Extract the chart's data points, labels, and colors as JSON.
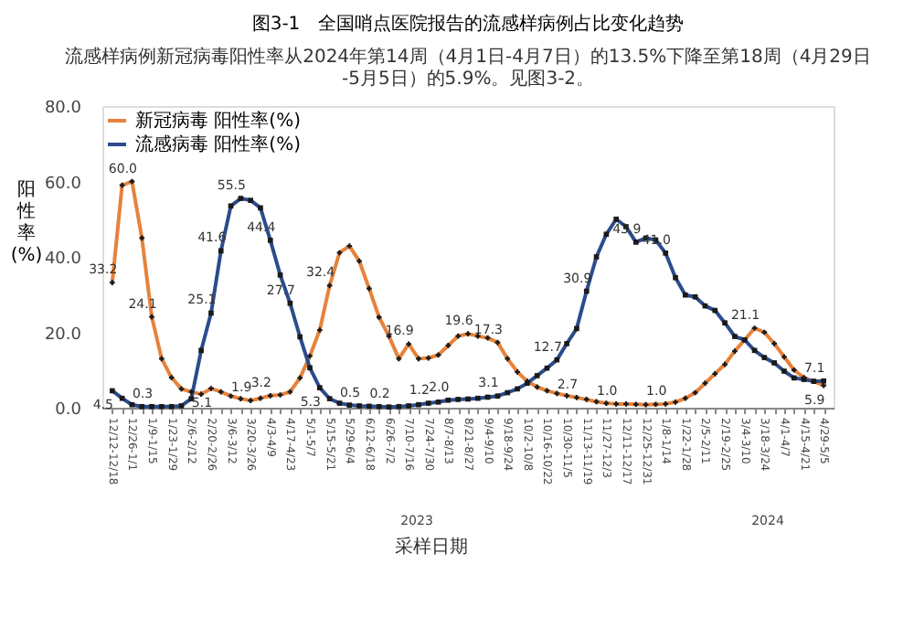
{
  "chart_data": {
    "type": "line",
    "title": "图3-1　全国哨点医院报告的流感样病例占比变化趋势",
    "subtitle": "流感样病例新冠病毒阳性率从2024年第14周（4月1日-4月7日）的13.5%下降至第18周（4月29日-5月5日）的5.9%。见图3-2。",
    "xlabel": "采样日期",
    "ylabel": "阳性率(%)",
    "categories": [
      "12/12-12/18",
      null,
      "12/26-1/1",
      null,
      "1/9-1/15",
      null,
      "1/23-1/29",
      null,
      "2/6-2/12",
      null,
      "2/20-2/26",
      null,
      "3/6-3/12",
      null,
      "3/20-3/26",
      null,
      "4/3-4/9",
      null,
      "4/17-4/23",
      null,
      "5/1-5/7",
      null,
      "5/15-5/21",
      null,
      "5/29-6/4",
      null,
      "6/12-6/18",
      null,
      "6/26-7/2",
      null,
      "7/10-7/16",
      null,
      "7/24-7/30",
      null,
      "8/7-8/13",
      null,
      "8/21-8/27",
      null,
      "9/4-9/10",
      null,
      "9/18-9/24",
      null,
      "10/2-10/8",
      null,
      "10/16-10/22",
      null,
      "10/30-11/5",
      null,
      "11/13-11/19",
      null,
      "11/27-12/3",
      null,
      "12/11-12/17",
      null,
      "12/25-12/31",
      null,
      "1/8-1/14",
      null,
      "1/22-1/28",
      null,
      "2/5-2/11",
      null,
      "2/19-2/25",
      null,
      "3/4-3/10",
      null,
      "3/18-3/24",
      null,
      "4/1-4/7",
      null,
      "4/15-4/21",
      null,
      "4/29-5/5"
    ],
    "series": [
      {
        "name": "新冠病毒 阳性率(%)",
        "color": "#e8823a",
        "marker": "cross",
        "values": [
          33.2,
          59,
          60.0,
          45,
          24.1,
          13,
          8,
          5,
          4.2,
          3.6,
          5.1,
          4.2,
          3.1,
          2.4,
          1.9,
          2.5,
          3.2,
          3.4,
          4.2,
          7.9,
          13.7,
          20.6,
          32.4,
          41.1,
          42.9,
          38.9,
          31.6,
          24,
          19,
          13,
          16.9,
          13,
          13.2,
          14,
          16.5,
          19,
          19.6,
          19,
          18.5,
          17.3,
          13,
          9.5,
          7,
          5.5,
          4.5,
          3.8,
          3.2,
          2.7,
          2.2,
          1.6,
          1.2,
          1.0,
          1.0,
          0.9,
          0.8,
          0.9,
          1.0,
          1.5,
          2.5,
          4,
          6.5,
          9,
          11.5,
          15,
          18,
          21.1,
          20,
          17,
          13.5,
          10,
          8,
          7,
          5.9
        ],
        "value_labels": [
          "33.2",
          null,
          "60.0",
          null,
          "24.1",
          null,
          null,
          null,
          null,
          null,
          "5.1",
          null,
          null,
          null,
          "1.9",
          null,
          "3.2",
          null,
          null,
          null,
          null,
          null,
          "32.4",
          null,
          null,
          null,
          null,
          null,
          null,
          null,
          "16.9",
          null,
          null,
          null,
          null,
          null,
          "19.6",
          null,
          null,
          "17.3",
          null,
          null,
          null,
          null,
          null,
          null,
          null,
          "2.7",
          null,
          null,
          null,
          "1.0",
          null,
          null,
          null,
          null,
          "1.0",
          null,
          null,
          null,
          null,
          null,
          null,
          null,
          null,
          "21.1",
          null,
          null,
          null,
          null,
          null,
          null,
          "5.9"
        ]
      },
      {
        "name": "流感病毒 阳性率(%)",
        "color": "#2b4c8c",
        "marker": "square",
        "values": [
          4.5,
          2.5,
          0.8,
          0.3,
          0.3,
          0.3,
          0.3,
          0.5,
          2.4,
          15.2,
          25.1,
          41.6,
          53.5,
          55.5,
          55,
          53,
          44.4,
          35.2,
          27.7,
          18.8,
          10.6,
          5.3,
          2.4,
          1.2,
          0.7,
          0.5,
          0.4,
          0.3,
          0.2,
          0.3,
          0.5,
          0.8,
          1.2,
          1.5,
          2.0,
          2.2,
          2.3,
          2.5,
          2.8,
          3.1,
          4,
          5,
          6.5,
          8.5,
          10.5,
          12.7,
          17,
          21,
          30.9,
          40,
          46,
          50,
          48,
          43.9,
          45,
          44.5,
          41.0,
          34.5,
          29.9,
          29.4,
          27,
          25.8,
          22.5,
          18.9,
          18,
          15.2,
          13.3,
          11.9,
          9.7,
          7.9,
          7.5,
          7.0,
          7.1
        ],
        "value_labels": [
          "4.5",
          null,
          null,
          null,
          "0.3",
          null,
          null,
          null,
          null,
          null,
          "25.1",
          "41.6",
          null,
          "55.5",
          null,
          null,
          "44.4",
          null,
          "27.7",
          null,
          null,
          "5.3",
          null,
          null,
          null,
          "0.5",
          null,
          null,
          "0.2",
          null,
          null,
          null,
          "1.2",
          null,
          "2.0",
          null,
          null,
          null,
          null,
          "3.1",
          null,
          null,
          null,
          null,
          null,
          "12.7",
          null,
          null,
          "30.9",
          null,
          null,
          null,
          null,
          "43.9",
          null,
          null,
          "41.0",
          null,
          null,
          null,
          null,
          null,
          null,
          null,
          null,
          null,
          null,
          null,
          null,
          null,
          null,
          null,
          "7.1"
        ]
      }
    ],
    "annotations": [
      "2023",
      "2024"
    ],
    "ylim": [
      0,
      80
    ],
    "yticks": [
      {
        "value": 0,
        "label": "0.0"
      },
      {
        "value": 20,
        "label": "20.0"
      },
      {
        "value": 40,
        "label": "40.0"
      },
      {
        "value": 60,
        "label": "60.0"
      },
      {
        "value": 80,
        "label": "80.0"
      }
    ],
    "legend": "top left",
    "grid": false,
    "line_style": "solid"
  }
}
